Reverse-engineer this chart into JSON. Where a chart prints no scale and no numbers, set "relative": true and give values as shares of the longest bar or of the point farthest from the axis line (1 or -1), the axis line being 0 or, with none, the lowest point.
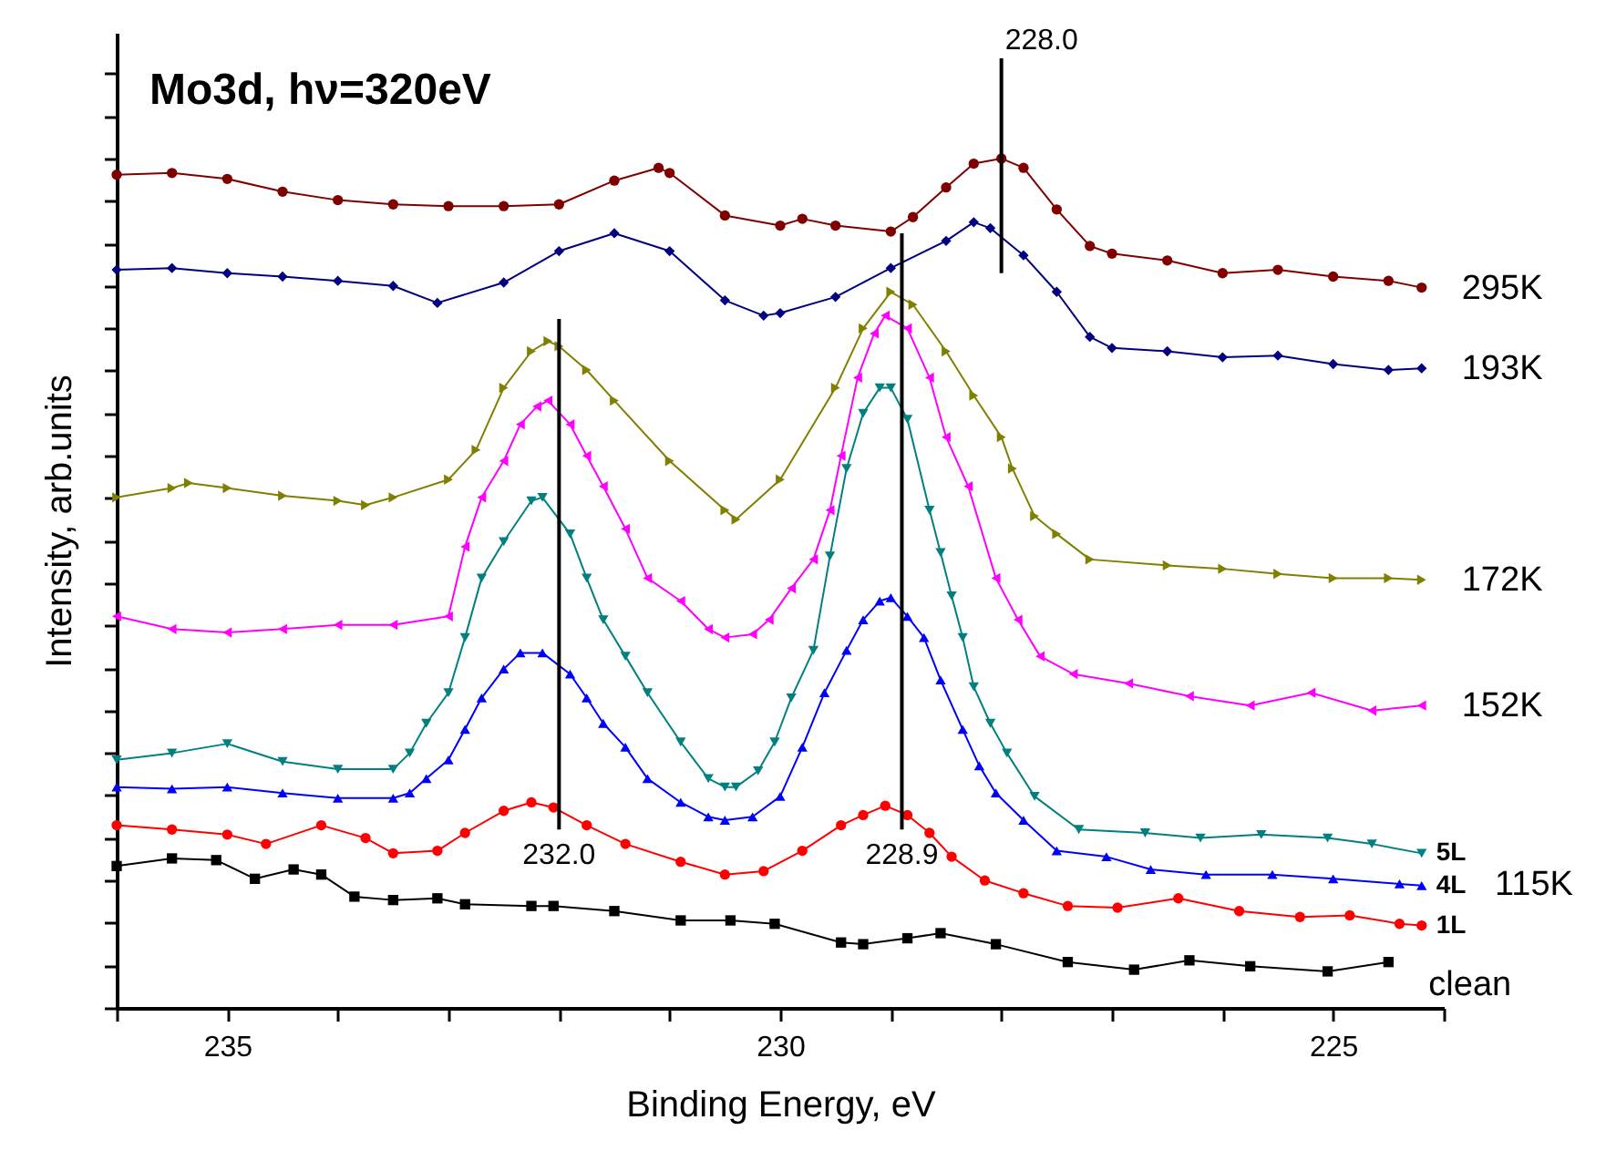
{
  "chart_data": {
    "type": "line",
    "title": "Mo3d, hν=320eV",
    "xlabel": "Binding Energy, eV",
    "ylabel": "Intensity, arb.units",
    "relative": true,
    "xlim": [
      236,
      224
    ],
    "xticks": [
      {
        "value": 236,
        "label": null
      },
      235,
      {
        "value": 234,
        "label": null
      },
      {
        "value": 233,
        "label": null
      },
      {
        "value": 232,
        "label": null
      },
      {
        "value": 231,
        "label": null
      },
      230,
      {
        "value": 229,
        "label": null
      },
      {
        "value": 228,
        "label": null
      },
      {
        "value": 227,
        "label": null
      },
      {
        "value": 226,
        "label": null
      },
      225,
      {
        "value": 224,
        "label": null
      }
    ],
    "series": [
      {
        "name": "295K",
        "color": "#800000",
        "marker": "circle",
        "x": [
          236,
          235.5,
          235,
          234.5,
          234,
          233.5,
          233,
          232.5,
          232,
          231.5,
          231.1,
          231,
          230.5,
          230,
          229.8,
          229.5,
          229,
          228.8,
          228.5,
          228.25,
          228,
          227.8,
          227.5,
          227.2,
          227,
          226.5,
          226,
          225.5,
          225,
          224.5,
          224.2
        ],
        "values": [
          0.981,
          0.983,
          0.976,
          0.961,
          0.951,
          0.946,
          0.944,
          0.944,
          0.946,
          0.974,
          0.989,
          0.983,
          0.933,
          0.921,
          0.929,
          0.921,
          0.914,
          0.931,
          0.966,
          0.994,
          1.0,
          0.989,
          0.94,
          0.897,
          0.888,
          0.88,
          0.865,
          0.869,
          0.861,
          0.856,
          0.848
        ]
      },
      {
        "name": "193K",
        "color": "#000080",
        "marker": "diamond",
        "x": [
          236,
          235.5,
          235,
          234.5,
          234,
          233.5,
          233.1,
          232.5,
          232,
          231.5,
          231,
          230.5,
          230.15,
          230,
          229.5,
          229,
          228.5,
          228.25,
          228.1,
          227.8,
          227.5,
          227.2,
          227,
          226.5,
          226,
          225.5,
          225,
          224.5,
          224.2
        ],
        "values": [
          0.869,
          0.871,
          0.865,
          0.861,
          0.856,
          0.85,
          0.83,
          0.854,
          0.891,
          0.912,
          0.891,
          0.833,
          0.815,
          0.818,
          0.837,
          0.871,
          0.903,
          0.925,
          0.918,
          0.886,
          0.843,
          0.79,
          0.777,
          0.773,
          0.766,
          0.768,
          0.758,
          0.751,
          0.753
        ]
      },
      {
        "name": "172K",
        "color": "#808000",
        "marker": "triangle-right",
        "x": [
          236,
          235.5,
          235.35,
          235,
          234.5,
          234,
          233.75,
          233.5,
          233,
          232.75,
          232.5,
          232.25,
          232.1,
          232,
          231.75,
          231.5,
          231,
          230.5,
          230.4,
          230,
          229.5,
          229.25,
          229,
          228.8,
          228.5,
          228.25,
          228,
          227.9,
          227.7,
          227.5,
          227.2,
          226.5,
          226,
          225.5,
          225,
          224.5,
          224.2
        ],
        "values": [
          0.601,
          0.612,
          0.618,
          0.612,
          0.603,
          0.597,
          0.592,
          0.601,
          0.622,
          0.657,
          0.73,
          0.773,
          0.785,
          0.779,
          0.751,
          0.715,
          0.644,
          0.586,
          0.575,
          0.622,
          0.73,
          0.8,
          0.843,
          0.828,
          0.773,
          0.721,
          0.672,
          0.635,
          0.579,
          0.558,
          0.528,
          0.521,
          0.517,
          0.511,
          0.506,
          0.506,
          0.504
        ]
      },
      {
        "name": "152K",
        "color": "#ff00ff",
        "marker": "triangle-left",
        "x": [
          236,
          235.5,
          235,
          234.5,
          234,
          233.5,
          233,
          232.85,
          232.7,
          232.5,
          232.35,
          232.2,
          232.1,
          231.9,
          231.75,
          231.6,
          231.4,
          231.2,
          230.9,
          230.65,
          230.5,
          230.25,
          230.1,
          229.9,
          229.7,
          229.55,
          229.45,
          229.3,
          229.15,
          229.05,
          228.85,
          228.65,
          228.5,
          228.3,
          228.05,
          227.85,
          227.65,
          227.35,
          226.85,
          226.3,
          225.75,
          225.2,
          224.65,
          224.2
        ],
        "values": [
          0.461,
          0.446,
          0.442,
          0.446,
          0.451,
          0.451,
          0.461,
          0.543,
          0.601,
          0.644,
          0.687,
          0.708,
          0.715,
          0.687,
          0.65,
          0.614,
          0.564,
          0.506,
          0.479,
          0.446,
          0.436,
          0.44,
          0.457,
          0.494,
          0.528,
          0.586,
          0.65,
          0.742,
          0.794,
          0.815,
          0.8,
          0.742,
          0.672,
          0.614,
          0.506,
          0.457,
          0.414,
          0.393,
          0.382,
          0.367,
          0.356,
          0.371,
          0.35,
          0.356
        ]
      },
      {
        "name": "5L",
        "color": "#008080",
        "marker": "triangle-down",
        "x": [
          236,
          235.5,
          235,
          234.5,
          234,
          233.5,
          233.35,
          233.2,
          233,
          232.85,
          232.7,
          232.5,
          232.25,
          232.15,
          231.9,
          231.75,
          231.6,
          231.4,
          231.2,
          230.9,
          230.65,
          230.5,
          230.4,
          230.2,
          230.05,
          229.9,
          229.7,
          229.55,
          229.4,
          229.25,
          229.1,
          229,
          228.85,
          228.65,
          228.55,
          228.45,
          228.35,
          228.25,
          228.1,
          227.95,
          227.7,
          227.3,
          226.7,
          226.2,
          225.65,
          225.05,
          224.65,
          224.2
        ],
        "values": [
          0.292,
          0.3,
          0.311,
          0.29,
          0.281,
          0.281,
          0.3,
          0.335,
          0.371,
          0.436,
          0.506,
          0.549,
          0.597,
          0.601,
          0.558,
          0.506,
          0.457,
          0.414,
          0.371,
          0.313,
          0.27,
          0.26,
          0.26,
          0.279,
          0.313,
          0.365,
          0.421,
          0.532,
          0.635,
          0.7,
          0.73,
          0.73,
          0.693,
          0.586,
          0.536,
          0.485,
          0.436,
          0.378,
          0.335,
          0.3,
          0.249,
          0.21,
          0.206,
          0.2,
          0.204,
          0.2,
          0.193,
          0.182
        ]
      },
      {
        "name": "4L",
        "color": "#0000ff",
        "marker": "triangle-up",
        "x": [
          236,
          235.5,
          235,
          234.5,
          234,
          233.5,
          233.35,
          233.2,
          233,
          232.85,
          232.7,
          232.5,
          232.35,
          232.15,
          231.9,
          231.75,
          231.6,
          231.4,
          231.2,
          230.9,
          230.65,
          230.5,
          230.25,
          230,
          229.8,
          229.6,
          229.4,
          229.25,
          229.1,
          229,
          228.85,
          228.7,
          228.55,
          228.35,
          228.2,
          228.05,
          227.8,
          227.5,
          227.05,
          226.65,
          226.15,
          225.55,
          225,
          224.4,
          224.2
        ],
        "values": [
          0.26,
          0.258,
          0.26,
          0.253,
          0.247,
          0.247,
          0.253,
          0.27,
          0.292,
          0.328,
          0.365,
          0.399,
          0.418,
          0.418,
          0.393,
          0.365,
          0.335,
          0.307,
          0.27,
          0.242,
          0.225,
          0.221,
          0.225,
          0.249,
          0.307,
          0.371,
          0.421,
          0.457,
          0.479,
          0.483,
          0.461,
          0.436,
          0.386,
          0.328,
          0.285,
          0.253,
          0.221,
          0.185,
          0.178,
          0.163,
          0.157,
          0.157,
          0.152,
          0.146,
          0.144
        ]
      },
      {
        "name": "1L",
        "color": "#ff0000",
        "marker": "circle",
        "x": [
          236,
          235.5,
          235,
          234.65,
          234.15,
          233.75,
          233.5,
          233.1,
          232.85,
          232.5,
          232.25,
          232.05,
          231.75,
          231.4,
          230.9,
          230.5,
          230.15,
          229.8,
          229.45,
          229.25,
          229.05,
          228.85,
          228.65,
          228.45,
          228.15,
          227.8,
          227.4,
          226.95,
          226.4,
          225.85,
          225.3,
          224.85,
          224.4,
          224.2
        ],
        "values": [
          0.215,
          0.21,
          0.204,
          0.193,
          0.215,
          0.2,
          0.182,
          0.185,
          0.206,
          0.232,
          0.242,
          0.236,
          0.215,
          0.193,
          0.172,
          0.157,
          0.161,
          0.185,
          0.215,
          0.227,
          0.238,
          0.227,
          0.206,
          0.178,
          0.15,
          0.135,
          0.12,
          0.118,
          0.129,
          0.114,
          0.107,
          0.109,
          0.099,
          0.097
        ]
      },
      {
        "name": "clean",
        "color": "#000000",
        "marker": "square",
        "x": [
          236,
          235.5,
          235.1,
          234.75,
          234.4,
          234.15,
          233.85,
          233.5,
          233.1,
          232.85,
          232.25,
          232.05,
          231.5,
          230.9,
          230.45,
          230.05,
          229.45,
          229.25,
          228.85,
          228.55,
          228.05,
          227.4,
          226.8,
          226.3,
          225.75,
          225.05,
          224.5
        ],
        "values": [
          0.167,
          0.176,
          0.174,
          0.152,
          0.163,
          0.157,
          0.131,
          0.127,
          0.129,
          0.122,
          0.12,
          0.12,
          0.114,
          0.103,
          0.103,
          0.099,
          0.077,
          0.075,
          0.082,
          0.088,
          0.075,
          0.054,
          0.045,
          0.056,
          0.049,
          0.043,
          0.054
        ]
      }
    ],
    "ref_lines": [
      {
        "axis": "x",
        "value": 232.0,
        "label": "232.0",
        "color": "#000000"
      },
      {
        "axis": "x",
        "value": 228.9,
        "label": "228.9",
        "color": "#000000"
      },
      {
        "axis": "x",
        "value": 228.0,
        "label": "228.0",
        "color": "#000000"
      }
    ],
    "annotations": [
      "115K"
    ]
  }
}
